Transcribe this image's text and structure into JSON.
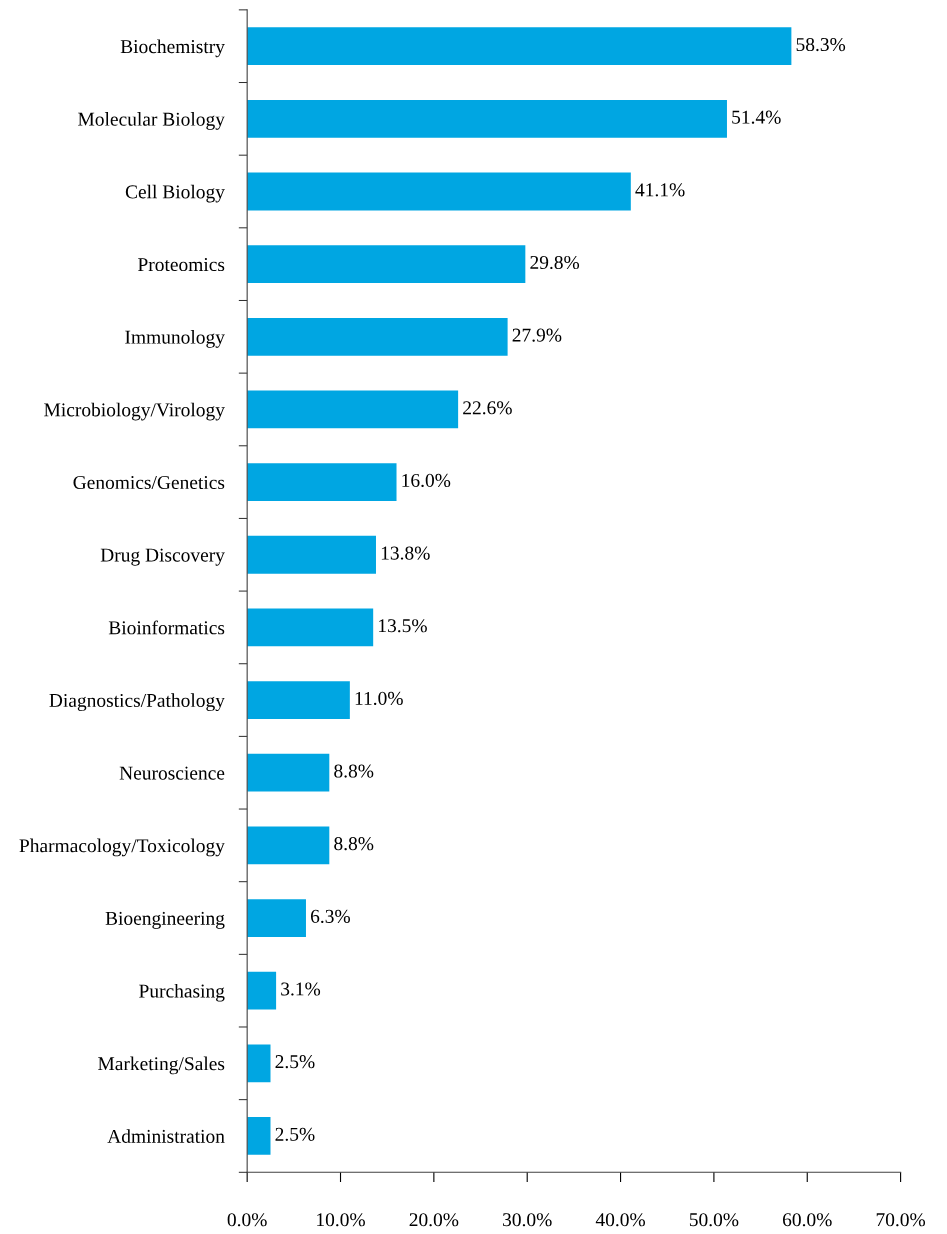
{
  "chart_data": {
    "type": "bar",
    "orientation": "horizontal",
    "categories": [
      "Biochemistry",
      "Molecular Biology",
      "Cell Biology",
      "Proteomics",
      "Immunology",
      "Microbiology/Virology",
      "Genomics/Genetics",
      "Drug Discovery",
      "Bioinformatics",
      "Diagnostics/Pathology",
      "Neuroscience",
      "Pharmacology/Toxicology",
      "Bioengineering",
      "Purchasing",
      "Marketing/Sales",
      "Administration"
    ],
    "values": [
      58.3,
      51.4,
      41.1,
      29.8,
      27.9,
      22.6,
      16.0,
      13.8,
      13.5,
      11.0,
      8.8,
      8.8,
      6.3,
      3.1,
      2.5,
      2.5
    ],
    "value_labels": [
      "58.3%",
      "51.4%",
      "41.1%",
      "29.8%",
      "27.9%",
      "22.6%",
      "16.0%",
      "13.8%",
      "13.5%",
      "11.0%",
      "8.8%",
      "8.8%",
      "6.3%",
      "3.1%",
      "2.5%",
      "2.5%"
    ],
    "color": "#00a6e2",
    "xlim": [
      0,
      70
    ],
    "xticks": [
      {
        "value": 0,
        "label": "0.0%"
      },
      {
        "value": 10,
        "label": "10.0%"
      },
      {
        "value": 20,
        "label": "20.0%"
      },
      {
        "value": 30,
        "label": "30.0%"
      },
      {
        "value": 40,
        "label": "40.0%"
      },
      {
        "value": 50,
        "label": "50.0%"
      },
      {
        "value": 60,
        "label": "60.0%"
      },
      {
        "value": 70,
        "label": "70.0%"
      }
    ],
    "grid": false,
    "legend": false
  }
}
